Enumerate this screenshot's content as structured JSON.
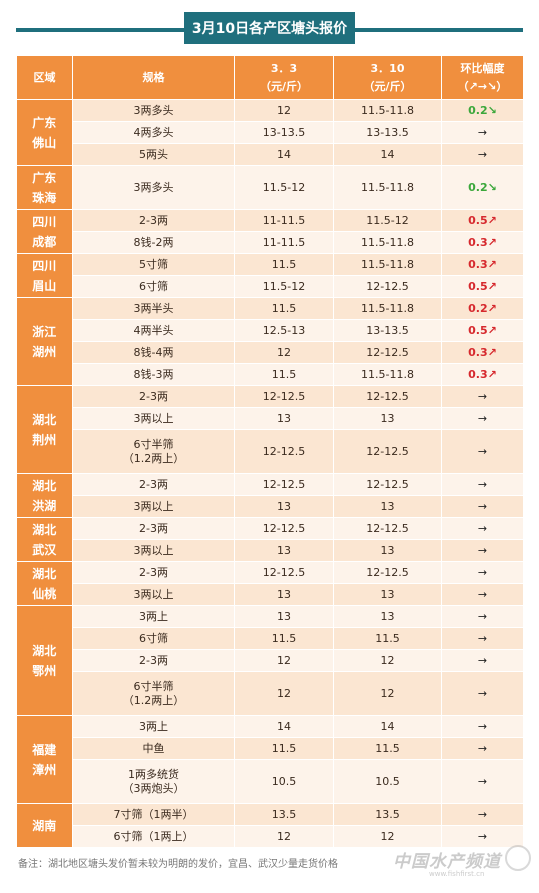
{
  "title": "3月10日各产区塘头报价",
  "headers": {
    "region": "区域",
    "spec": "规格",
    "p1_line1": "3．3",
    "p1_line2": "（元/斤）",
    "p2_line1": "3．10",
    "p2_line2": "（元/斤）",
    "chg_line1": "环比幅度",
    "chg_line2": "（↗→↘）"
  },
  "groups": [
    {
      "region": [
        "广东",
        "佛山"
      ],
      "rows": [
        {
          "spec": [
            "3两多头"
          ],
          "p1": "12",
          "p2": "11.5-11.8",
          "chg": "0.2↘",
          "dir": "down"
        },
        {
          "spec": [
            "4两多头"
          ],
          "p1": "13-13.5",
          "p2": "13-13.5",
          "chg": "→",
          "dir": "flat"
        },
        {
          "spec": [
            "5两头"
          ],
          "p1": "14",
          "p2": "14",
          "chg": "→",
          "dir": "flat"
        }
      ]
    },
    {
      "region": [
        "广东",
        "珠海"
      ],
      "rows": [
        {
          "spec": [
            "3两多头"
          ],
          "p1": "11.5-12",
          "p2": "11.5-11.8",
          "chg": "0.2↘",
          "dir": "down",
          "tall": true
        }
      ]
    },
    {
      "region": [
        "四川",
        "成都"
      ],
      "rows": [
        {
          "spec": [
            "2-3两"
          ],
          "p1": "11-11.5",
          "p2": "11.5-12",
          "chg": "0.5↗",
          "dir": "up"
        },
        {
          "spec": [
            "8钱-2两"
          ],
          "p1": "11-11.5",
          "p2": "11.5-11.8",
          "chg": "0.3↗",
          "dir": "up"
        }
      ]
    },
    {
      "region": [
        "四川",
        "眉山"
      ],
      "rows": [
        {
          "spec": [
            "5寸筛"
          ],
          "p1": "11.5",
          "p2": "11.5-11.8",
          "chg": "0.3↗",
          "dir": "up"
        },
        {
          "spec": [
            "6寸筛"
          ],
          "p1": "11.5-12",
          "p2": "12-12.5",
          "chg": "0.5↗",
          "dir": "up"
        }
      ]
    },
    {
      "region": [
        "浙江",
        "湖州"
      ],
      "rows": [
        {
          "spec": [
            "3两半头"
          ],
          "p1": "11.5",
          "p2": "11.5-11.8",
          "chg": "0.2↗",
          "dir": "up"
        },
        {
          "spec": [
            "4两半头"
          ],
          "p1": "12.5-13",
          "p2": "13-13.5",
          "chg": "0.5↗",
          "dir": "up"
        },
        {
          "spec": [
            "8钱-4两"
          ],
          "p1": "12",
          "p2": "12-12.5",
          "chg": "0.3↗",
          "dir": "up"
        },
        {
          "spec": [
            "8钱-3两"
          ],
          "p1": "11.5",
          "p2": "11.5-11.8",
          "chg": "0.3↗",
          "dir": "up"
        }
      ]
    },
    {
      "region": [
        "湖北",
        "荆州"
      ],
      "rows": [
        {
          "spec": [
            "2-3两"
          ],
          "p1": "12-12.5",
          "p2": "12-12.5",
          "chg": "→",
          "dir": "flat"
        },
        {
          "spec": [
            "3两以上"
          ],
          "p1": "13",
          "p2": "13",
          "chg": "→",
          "dir": "flat"
        },
        {
          "spec": [
            "6寸半筛",
            "（1.2两上）"
          ],
          "p1": "12-12.5",
          "p2": "12-12.5",
          "chg": "→",
          "dir": "flat",
          "tall": true
        }
      ]
    },
    {
      "region": [
        "湖北",
        "洪湖"
      ],
      "rows": [
        {
          "spec": [
            "2-3两"
          ],
          "p1": "12-12.5",
          "p2": "12-12.5",
          "chg": "→",
          "dir": "flat"
        },
        {
          "spec": [
            "3两以上"
          ],
          "p1": "13",
          "p2": "13",
          "chg": "→",
          "dir": "flat"
        }
      ]
    },
    {
      "region": [
        "湖北",
        "武汉"
      ],
      "rows": [
        {
          "spec": [
            "2-3两"
          ],
          "p1": "12-12.5",
          "p2": "12-12.5",
          "chg": "→",
          "dir": "flat"
        },
        {
          "spec": [
            "3两以上"
          ],
          "p1": "13",
          "p2": "13",
          "chg": "→",
          "dir": "flat"
        }
      ]
    },
    {
      "region": [
        "湖北",
        "仙桃"
      ],
      "rows": [
        {
          "spec": [
            "2-3两"
          ],
          "p1": "12-12.5",
          "p2": "12-12.5",
          "chg": "→",
          "dir": "flat"
        },
        {
          "spec": [
            "3两以上"
          ],
          "p1": "13",
          "p2": "13",
          "chg": "→",
          "dir": "flat"
        }
      ]
    },
    {
      "region": [
        "湖北",
        "鄂州"
      ],
      "rows": [
        {
          "spec": [
            "3两上"
          ],
          "p1": "13",
          "p2": "13",
          "chg": "→",
          "dir": "flat"
        },
        {
          "spec": [
            "6寸筛"
          ],
          "p1": "11.5",
          "p2": "11.5",
          "chg": "→",
          "dir": "flat"
        },
        {
          "spec": [
            "2-3两"
          ],
          "p1": "12",
          "p2": "12",
          "chg": "→",
          "dir": "flat"
        },
        {
          "spec": [
            "6寸半筛",
            "（1.2两上）"
          ],
          "p1": "12",
          "p2": "12",
          "chg": "→",
          "dir": "flat",
          "tall": true
        }
      ]
    },
    {
      "region": [
        "福建",
        "漳州"
      ],
      "rows": [
        {
          "spec": [
            "3两上"
          ],
          "p1": "14",
          "p2": "14",
          "chg": "→",
          "dir": "flat"
        },
        {
          "spec": [
            "中鱼"
          ],
          "p1": "11.5",
          "p2": "11.5",
          "chg": "→",
          "dir": "flat"
        },
        {
          "spec": [
            "1两多统货",
            "（3两炮头）"
          ],
          "p1": "10.5",
          "p2": "10.5",
          "chg": "→",
          "dir": "flat",
          "tall": true
        }
      ]
    },
    {
      "region": [
        "湖南"
      ],
      "rows": [
        {
          "spec": [
            "7寸筛（1两半）"
          ],
          "p1": "13.5",
          "p2": "13.5",
          "chg": "→",
          "dir": "flat"
        },
        {
          "spec": [
            "6寸筛（1两上）"
          ],
          "p1": "12",
          "p2": "12",
          "chg": "→",
          "dir": "flat"
        }
      ]
    }
  ],
  "note": "备注：湖北地区塘头发价暂未较为明朗的发价，宜昌、武汉少量走货价格",
  "watermark": {
    "text": "中国水产频道",
    "url": "www.fishfirst.cn"
  }
}
